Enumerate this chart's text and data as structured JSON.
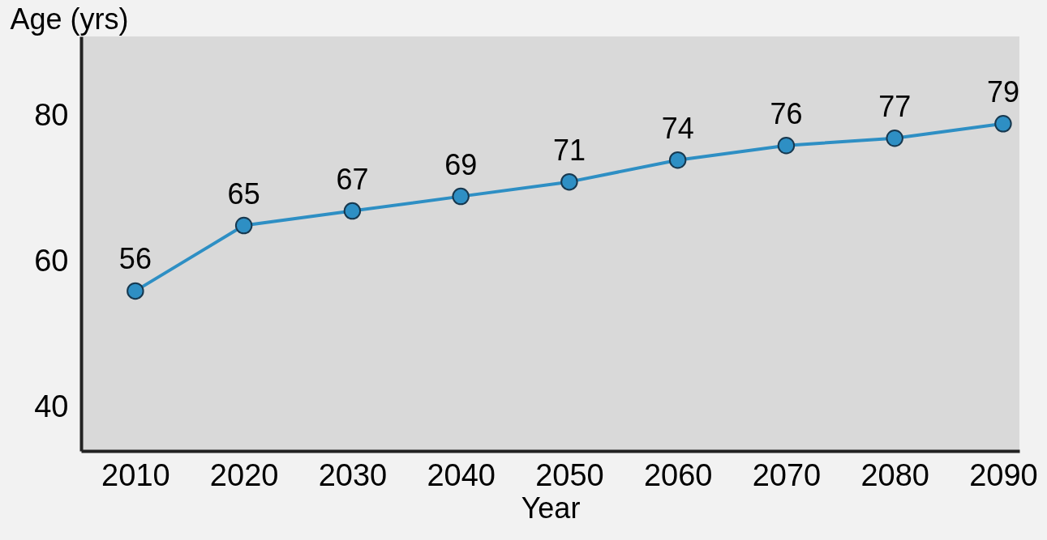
{
  "chart_data": {
    "type": "line",
    "xlabel": "Year",
    "ylabel": "Age (yrs)",
    "x": [
      2010,
      2020,
      2030,
      2040,
      2050,
      2060,
      2070,
      2080,
      2090
    ],
    "series": [
      {
        "color": "#2e8fc4",
        "values": [
          56,
          65,
          67,
          69,
          71,
          74,
          76,
          77,
          79
        ]
      }
    ],
    "xlim": [
      2005,
      2091.5
    ],
    "xticks": [
      2010,
      2020,
      2030,
      2040,
      2050,
      2060,
      2070,
      2080,
      2090
    ],
    "ylim": [
      34,
      91
    ],
    "yticks": [
      40,
      60,
      80
    ],
    "data_labels": true,
    "grid": false,
    "marker": "circle",
    "line_style": "solid"
  }
}
